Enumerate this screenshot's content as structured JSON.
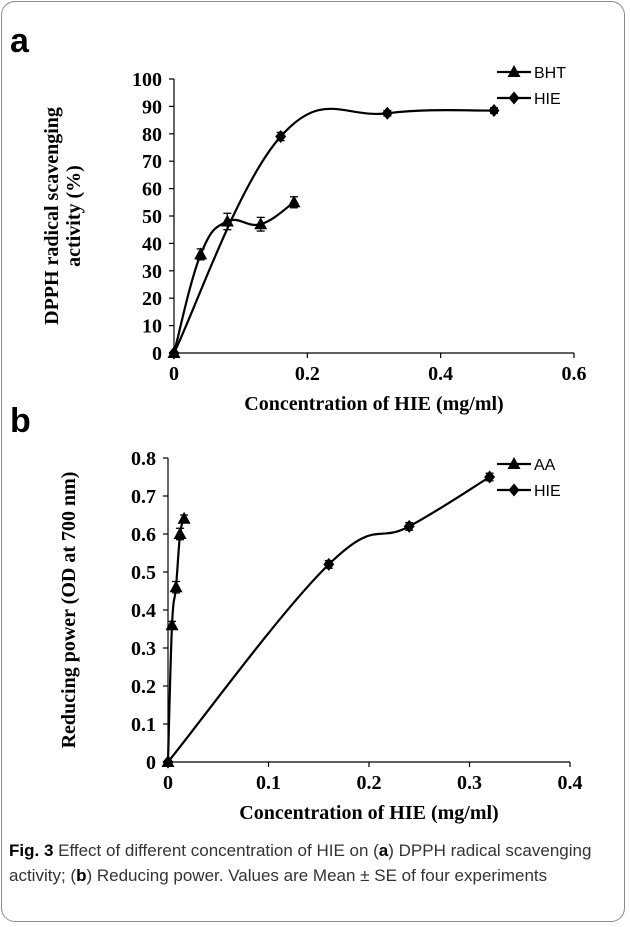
{
  "chart_data": [
    {
      "panel": "a",
      "type": "line",
      "ylabel_lines": [
        "DPPH radical scavenging",
        "activity (%)"
      ],
      "xlabel": "Concentration of HIE (mg/ml)",
      "xlim": [
        0,
        0.6
      ],
      "ylim": [
        0,
        100
      ],
      "xticks": [
        "0",
        "0.2",
        "0.4",
        "0.6"
      ],
      "xtick_values": [
        0,
        0.2,
        0.4,
        0.6
      ],
      "yticks": [
        "0",
        "10",
        "20",
        "30",
        "40",
        "50",
        "60",
        "70",
        "80",
        "90",
        "100"
      ],
      "ytick_values": [
        0,
        10,
        20,
        30,
        40,
        50,
        60,
        70,
        80,
        90,
        100
      ],
      "legend_position": "top-right",
      "series": [
        {
          "name": "BHT",
          "marker": "triangle",
          "x": [
            0,
            0.04,
            0.08,
            0.13,
            0.18
          ],
          "y": [
            0,
            36,
            48,
            47,
            55
          ],
          "err": [
            0,
            2,
            3,
            2.5,
            2
          ]
        },
        {
          "name": "HIE",
          "marker": "diamond",
          "x": [
            0,
            0.16,
            0.32,
            0.48
          ],
          "y": [
            0,
            79,
            87.5,
            88.5
          ],
          "err": [
            0,
            1.5,
            1,
            1
          ]
        }
      ]
    },
    {
      "panel": "b",
      "type": "line",
      "ylabel_lines": [
        "Reducing power (OD at 700 nm)"
      ],
      "xlabel": "Concentration of HIE (mg/ml)",
      "xlim": [
        0,
        0.4
      ],
      "ylim": [
        0,
        0.8
      ],
      "xticks": [
        "0",
        "0.1",
        "0.2",
        "0.3",
        "0.4"
      ],
      "xtick_values": [
        0,
        0.1,
        0.2,
        0.3,
        0.4
      ],
      "yticks": [
        "0",
        "0.1",
        "0.2",
        "0.3",
        "0.4",
        "0.5",
        "0.6",
        "0.7",
        "0.8"
      ],
      "ytick_values": [
        0,
        0.1,
        0.2,
        0.3,
        0.4,
        0.5,
        0.6,
        0.7,
        0.8
      ],
      "legend_position": "top-right",
      "series": [
        {
          "name": "AA",
          "marker": "triangle",
          "x": [
            0,
            0.004,
            0.008,
            0.012,
            0.016
          ],
          "y": [
            0,
            0.36,
            0.46,
            0.6,
            0.64
          ],
          "err": [
            0,
            0.01,
            0.015,
            0.015,
            0.01
          ]
        },
        {
          "name": "HIE",
          "marker": "diamond",
          "x": [
            0,
            0.16,
            0.24,
            0.32
          ],
          "y": [
            0,
            0.52,
            0.62,
            0.75
          ],
          "err": [
            0,
            0.01,
            0.01,
            0.01
          ]
        }
      ]
    }
  ],
  "caption": {
    "label": "Fig. 3",
    "p1": " Effect of different concentration of HIE on (",
    "a": "a",
    "p2": ") DPPH radical scavenging activity; (",
    "b": "b",
    "p3": ") Reducing power. Values are Mean ± SE of four experiments"
  }
}
